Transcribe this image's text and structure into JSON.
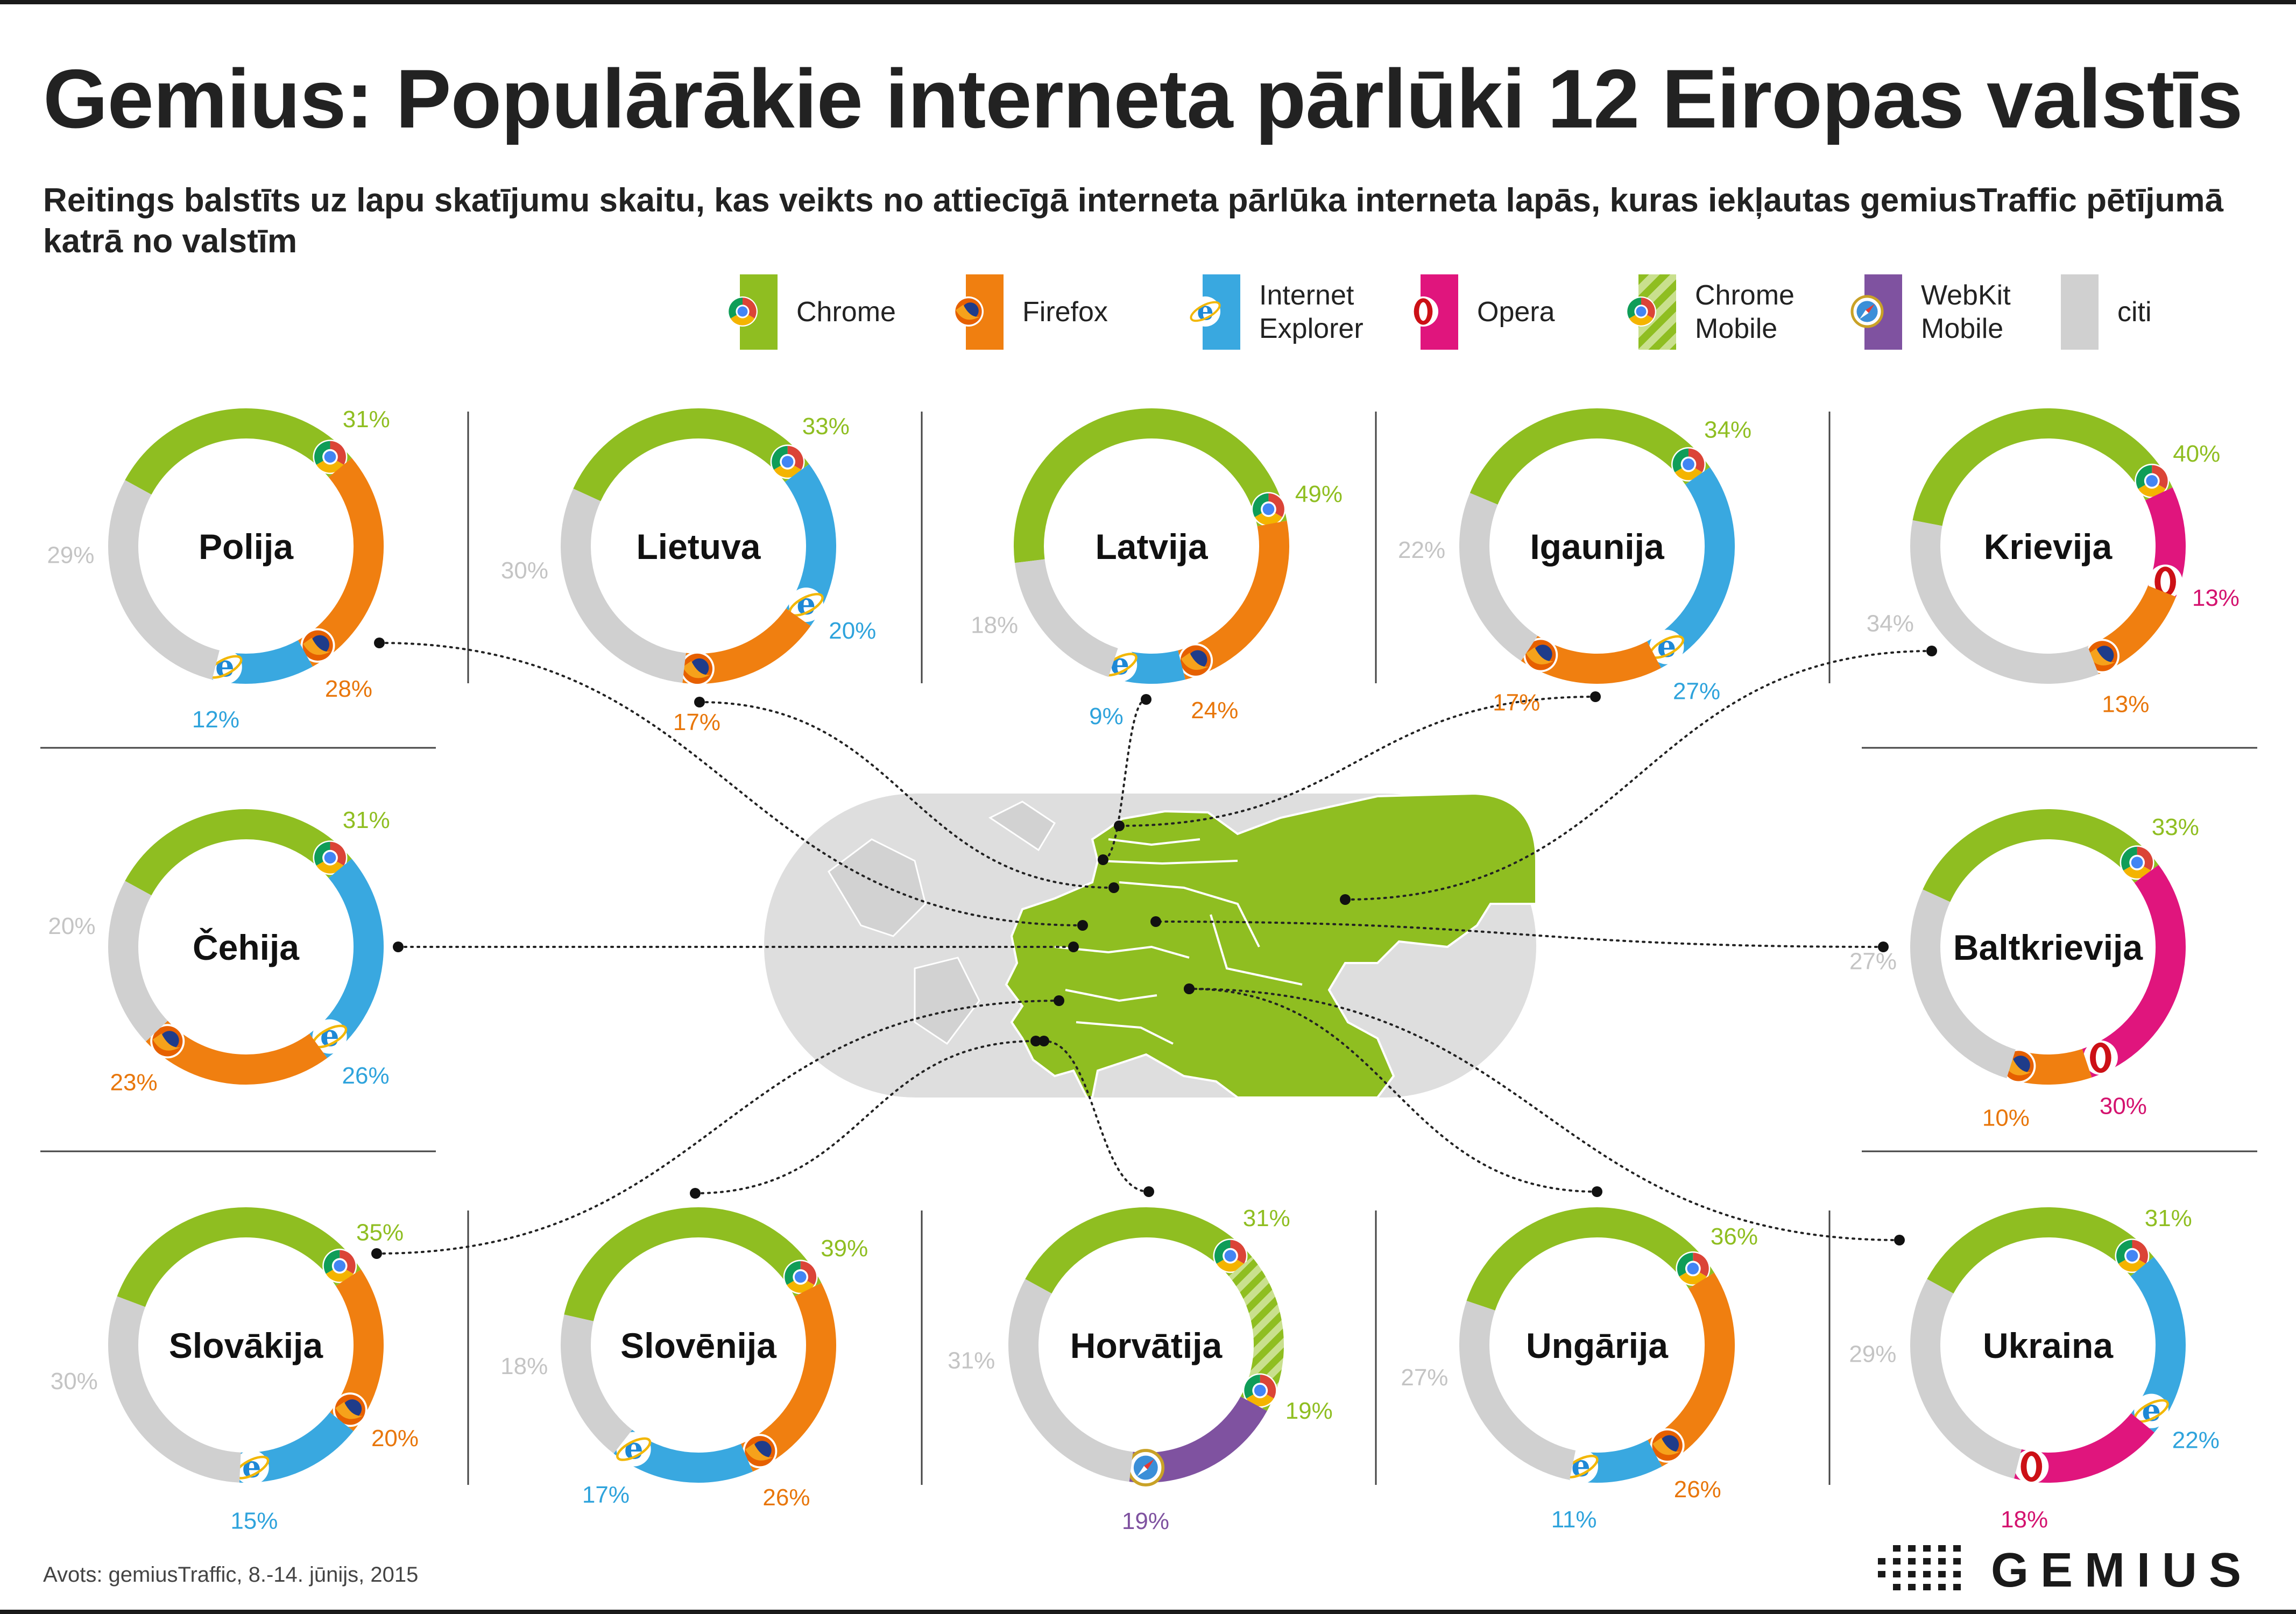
{
  "title": "Gemius: Populārākie interneta pārlūki 12 Eiropas valstīs",
  "subtitle": "Reitings balstīts uz lapu skatījumu skaitu, kas veikts no attiecīgā interneta pārlūka interneta lapās, kuras iekļautas gemiusTraffic pētījumā katrā no valstīm",
  "source": "Avots: gemiusTraffic, 8.-14. jūnijs, 2015",
  "logo_text": "GEMIUS",
  "colors": {
    "chrome": "#8fbe21",
    "firefox": "#f07f10",
    "ie": "#39a8e0",
    "opera": "#e0157d",
    "chrome_mobile": "#8fbe21",
    "webkit_mobile": "#7f52a0",
    "other": "#d0d0d0",
    "map_highlight": "#8fbe21",
    "map_base": "#dedede"
  },
  "legend": [
    {
      "key": "chrome",
      "label_lines": [
        "Chrome"
      ],
      "icon": "chrome-icon"
    },
    {
      "key": "firefox",
      "label_lines": [
        "Firefox"
      ],
      "icon": "firefox-icon"
    },
    {
      "key": "ie",
      "label_lines": [
        "Internet",
        "Explorer"
      ],
      "icon": "ie-icon"
    },
    {
      "key": "opera",
      "label_lines": [
        "Opera"
      ],
      "icon": "opera-icon"
    },
    {
      "key": "chrome_mobile",
      "label_lines": [
        "Chrome",
        "Mobile"
      ],
      "icon": "chrome-icon"
    },
    {
      "key": "webkit_mobile",
      "label_lines": [
        "WebKit",
        "Mobile"
      ],
      "icon": "compass-icon"
    },
    {
      "key": "other",
      "label_lines": [
        "citi"
      ],
      "icon": ""
    }
  ],
  "chart_data": {
    "type": "pie",
    "variant": "donut",
    "title": "Gemius: Populārākie interneta pārlūki 12 Eiropas valstīs",
    "unit": "%",
    "countries": [
      {
        "name": "Polija",
        "slices": [
          {
            "browser": "chrome",
            "value": 31
          },
          {
            "browser": "firefox",
            "value": 28
          },
          {
            "browser": "ie",
            "value": 12
          },
          {
            "browser": "other",
            "value": 29
          }
        ]
      },
      {
        "name": "Lietuva",
        "slices": [
          {
            "browser": "chrome",
            "value": 33
          },
          {
            "browser": "ie",
            "value": 20
          },
          {
            "browser": "firefox",
            "value": 17
          },
          {
            "browser": "other",
            "value": 30
          }
        ]
      },
      {
        "name": "Latvija",
        "slices": [
          {
            "browser": "chrome",
            "value": 49
          },
          {
            "browser": "firefox",
            "value": 24
          },
          {
            "browser": "ie",
            "value": 9
          },
          {
            "browser": "other",
            "value": 18
          }
        ]
      },
      {
        "name": "Igaunija",
        "slices": [
          {
            "browser": "chrome",
            "value": 34
          },
          {
            "browser": "ie",
            "value": 27
          },
          {
            "browser": "firefox",
            "value": 17
          },
          {
            "browser": "other",
            "value": 22
          }
        ]
      },
      {
        "name": "Krievija",
        "slices": [
          {
            "browser": "chrome",
            "value": 40
          },
          {
            "browser": "opera",
            "value": 13
          },
          {
            "browser": "firefox",
            "value": 13
          },
          {
            "browser": "other",
            "value": 34
          }
        ]
      },
      {
        "name": "Čehija",
        "slices": [
          {
            "browser": "chrome",
            "value": 31
          },
          {
            "browser": "ie",
            "value": 26
          },
          {
            "browser": "firefox",
            "value": 23
          },
          {
            "browser": "other",
            "value": 20
          }
        ]
      },
      {
        "name": "Baltkrievija",
        "slices": [
          {
            "browser": "chrome",
            "value": 33
          },
          {
            "browser": "opera",
            "value": 30
          },
          {
            "browser": "firefox",
            "value": 10
          },
          {
            "browser": "other",
            "value": 27
          }
        ]
      },
      {
        "name": "Slovākija",
        "slices": [
          {
            "browser": "chrome",
            "value": 35
          },
          {
            "browser": "firefox",
            "value": 20
          },
          {
            "browser": "ie",
            "value": 15
          },
          {
            "browser": "other",
            "value": 30
          }
        ]
      },
      {
        "name": "Slovēnija",
        "slices": [
          {
            "browser": "chrome",
            "value": 39
          },
          {
            "browser": "firefox",
            "value": 26
          },
          {
            "browser": "ie",
            "value": 17
          },
          {
            "browser": "other",
            "value": 18
          }
        ]
      },
      {
        "name": "Horvātija",
        "slices": [
          {
            "browser": "chrome",
            "value": 31
          },
          {
            "browser": "chrome_mobile",
            "value": 19
          },
          {
            "browser": "webkit_mobile",
            "value": 19
          },
          {
            "browser": "other",
            "value": 31
          }
        ]
      },
      {
        "name": "Ungārija",
        "slices": [
          {
            "browser": "chrome",
            "value": 36
          },
          {
            "browser": "firefox",
            "value": 26
          },
          {
            "browser": "ie",
            "value": 11
          },
          {
            "browser": "other",
            "value": 27
          }
        ]
      },
      {
        "name": "Ukraina",
        "slices": [
          {
            "browser": "chrome",
            "value": 31
          },
          {
            "browser": "ie",
            "value": 22
          },
          {
            "browser": "opera",
            "value": 18
          },
          {
            "browser": "other",
            "value": 29
          }
        ]
      }
    ]
  }
}
